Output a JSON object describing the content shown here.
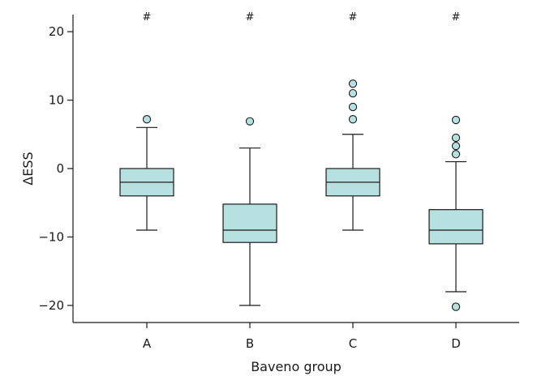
{
  "chart_data": {
    "type": "box",
    "xlabel": "Baveno group",
    "ylabel": "ΔESS",
    "ylim": [
      -22.5,
      22.5
    ],
    "yticks": [
      20,
      10,
      0,
      -10,
      -20
    ],
    "ytick_labels": [
      "20",
      "10",
      "0",
      "−10",
      "−20"
    ],
    "box_color": "#b7e1e1",
    "groups": [
      {
        "label": "A",
        "whisker_low": -9,
        "q1": -4,
        "median": -2,
        "q3": 0,
        "whisker_high": 6,
        "outliers": [
          7.2
        ],
        "marker": "#"
      },
      {
        "label": "B",
        "whisker_low": -20,
        "q1": -10.8,
        "median": -9,
        "q3": -5.2,
        "whisker_high": 3,
        "outliers": [
          6.9
        ],
        "marker": "#"
      },
      {
        "label": "C",
        "whisker_low": -9,
        "q1": -4,
        "median": -2,
        "q3": 0,
        "whisker_high": 5,
        "outliers": [
          7.2,
          9,
          11,
          12.4
        ],
        "marker": "#"
      },
      {
        "label": "D",
        "whisker_low": -18,
        "q1": -11,
        "median": -9,
        "q3": -6,
        "whisker_high": 1,
        "outliers": [
          2.1,
          3.3,
          4.5,
          7.1,
          -20.2
        ],
        "marker": "#"
      }
    ]
  }
}
